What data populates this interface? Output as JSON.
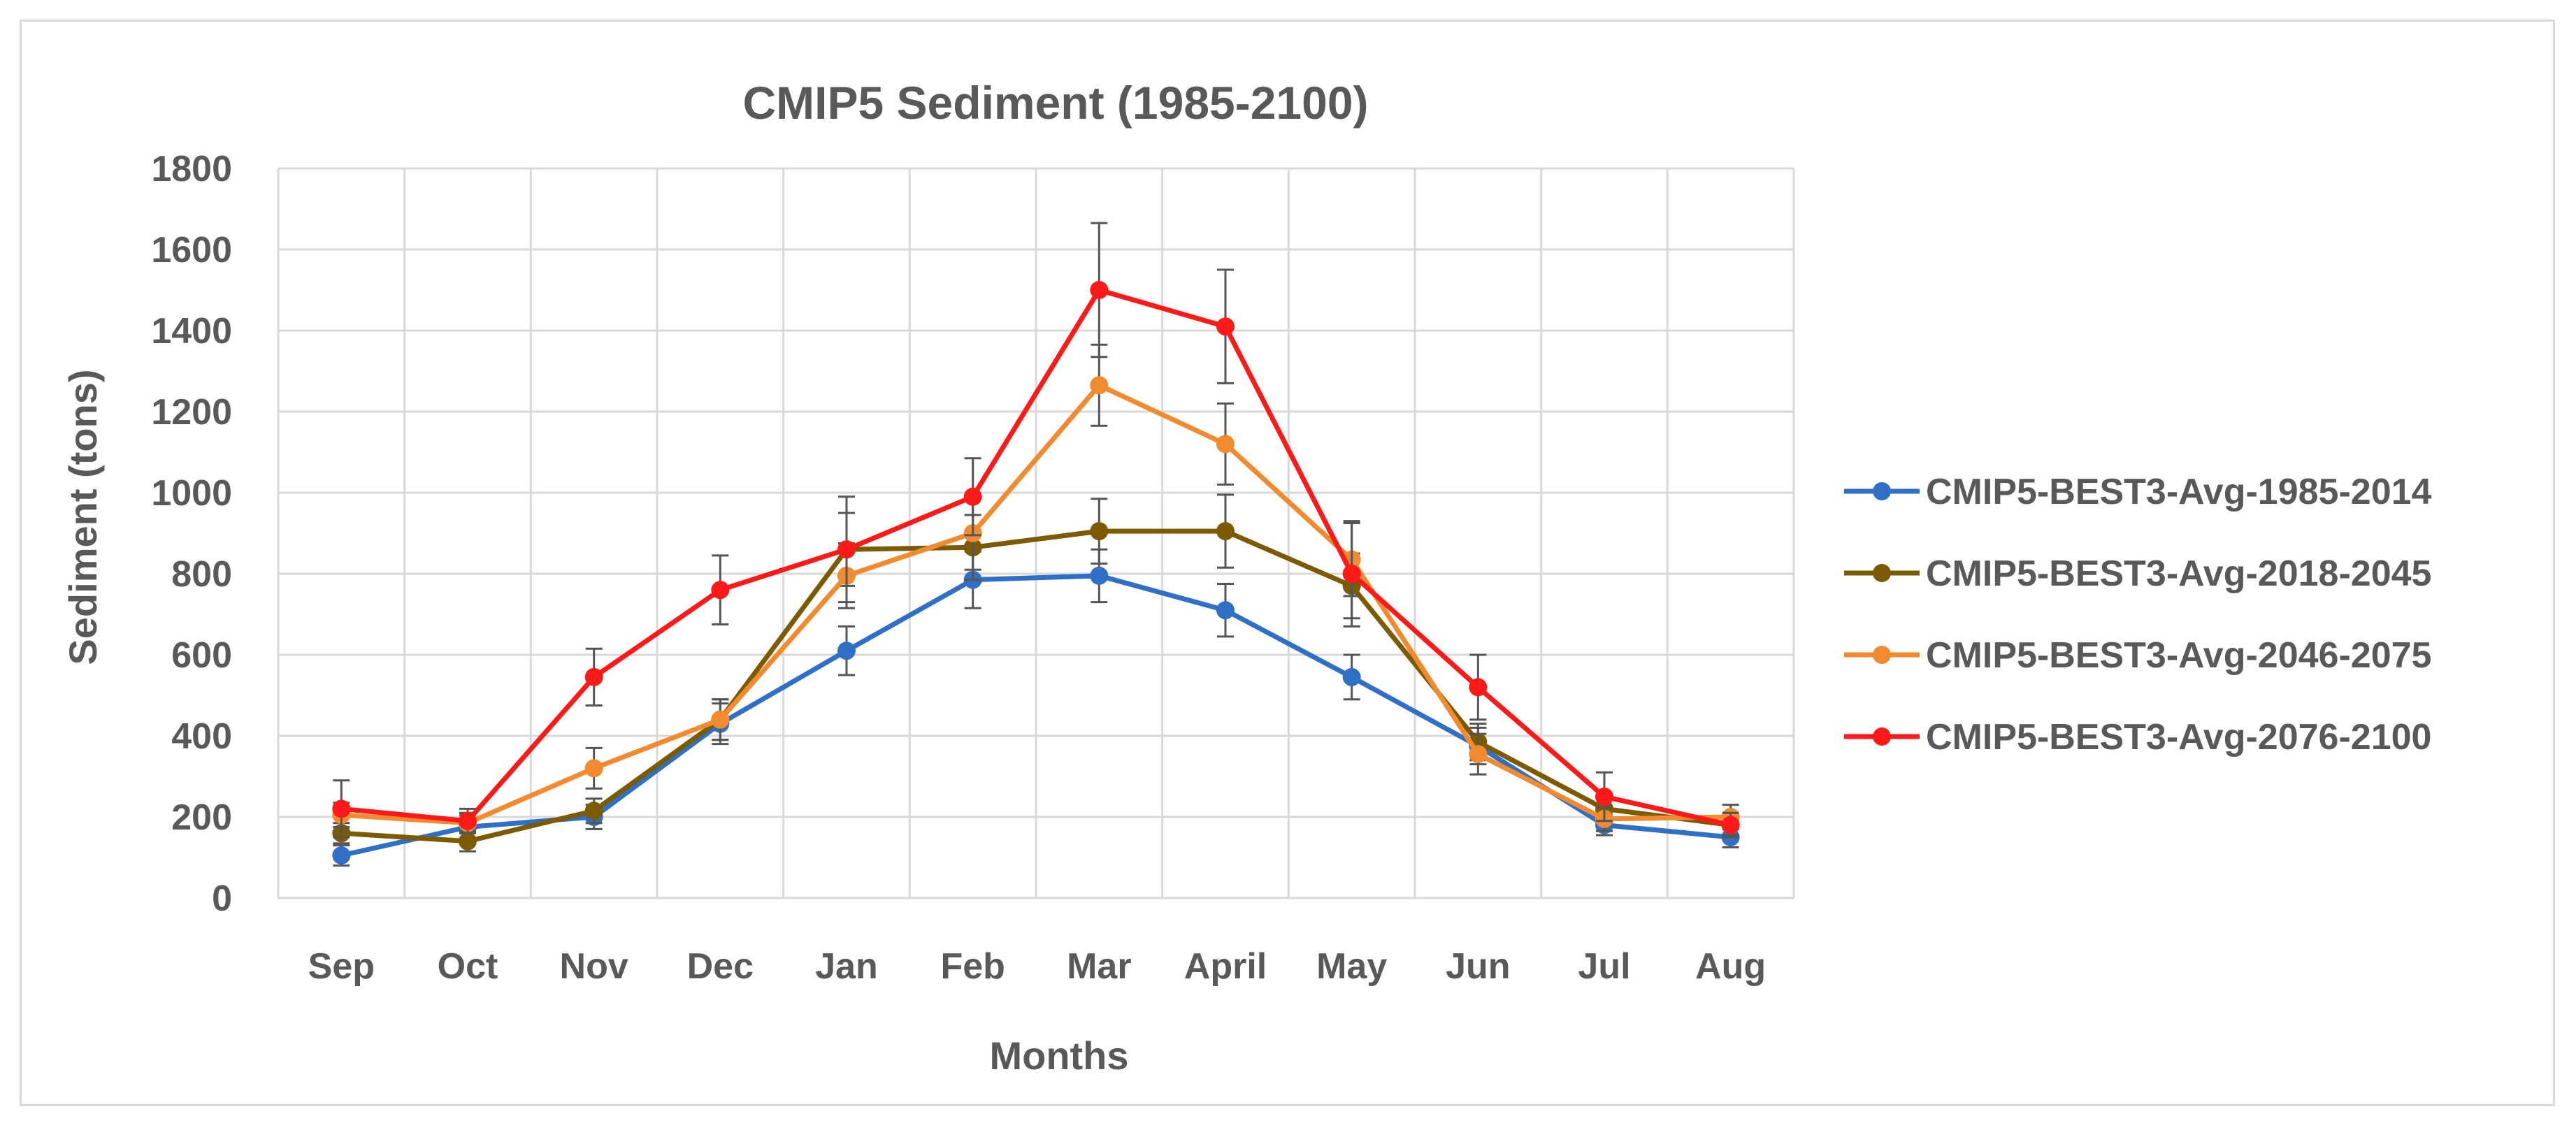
{
  "chart_data": {
    "type": "line",
    "title": "CMIP5 Sediment (1985-2100)",
    "xlabel": "Months",
    "ylabel": "Sediment (tons)",
    "ylim": [
      0,
      1800
    ],
    "yticks": [
      0,
      200,
      400,
      600,
      800,
      1000,
      1200,
      1400,
      1600,
      1800
    ],
    "grid": true,
    "legend_position": "right",
    "categories": [
      "Sep",
      "Oct",
      "Nov",
      "Dec",
      "Jan",
      "Feb",
      "Mar",
      "April",
      "May",
      "Jun",
      "Jul",
      "Aug"
    ],
    "series": [
      {
        "name": "CMIP5-BEST3-Avg-1985-2014",
        "color": "#2f6fc6",
        "values": [
          105,
          175,
          200,
          430,
          610,
          785,
          795,
          710,
          545,
          375,
          180,
          150
        ],
        "errors": [
          25,
          30,
          30,
          50,
          60,
          70,
          65,
          65,
          55,
          45,
          25,
          25
        ]
      },
      {
        "name": "CMIP5-BEST3-Avg-2018-2045",
        "color": "#7b5a00",
        "values": [
          160,
          140,
          215,
          440,
          860,
          865,
          905,
          905,
          770,
          385,
          220,
          180
        ],
        "errors": [
          25,
          25,
          30,
          50,
          90,
          80,
          80,
          90,
          80,
          45,
          30,
          25
        ]
      },
      {
        "name": "CMIP5-BEST3-Avg-2046-2075",
        "color": "#f28a30",
        "values": [
          205,
          185,
          320,
          440,
          795,
          900,
          1265,
          1120,
          835,
          355,
          195,
          200
        ],
        "errors": [
          30,
          25,
          50,
          50,
          80,
          90,
          100,
          100,
          90,
          50,
          30,
          30
        ]
      },
      {
        "name": "CMIP5-BEST3-Avg-2076-2100",
        "color": "#ff1a1a",
        "values": [
          220,
          190,
          545,
          760,
          860,
          990,
          1500,
          1410,
          800,
          520,
          250,
          180
        ],
        "errors": [
          70,
          30,
          70,
          85,
          130,
          95,
          165,
          140,
          130,
          80,
          60,
          30
        ]
      }
    ]
  }
}
